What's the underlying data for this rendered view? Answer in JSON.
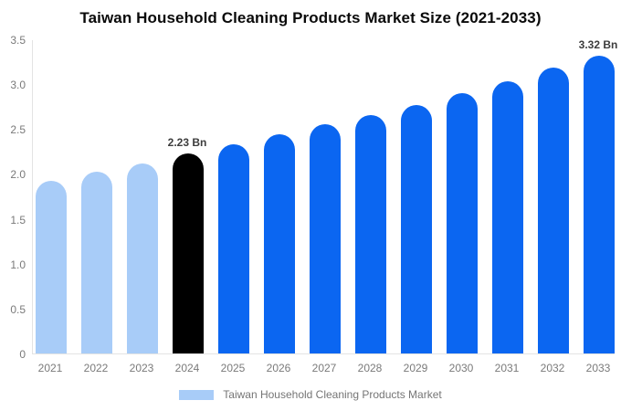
{
  "title": "Taiwan Household Cleaning Products Market Size (2021-2033)",
  "chart_data": {
    "type": "bar",
    "title": "Taiwan Household Cleaning Products Market Size (2021-2033)",
    "categories": [
      "2021",
      "2022",
      "2023",
      "2024",
      "2025",
      "2026",
      "2027",
      "2028",
      "2029",
      "2030",
      "2031",
      "2032",
      "2033"
    ],
    "values": [
      1.92,
      2.02,
      2.12,
      2.23,
      2.33,
      2.44,
      2.55,
      2.66,
      2.77,
      2.9,
      3.03,
      3.18,
      3.32
    ],
    "unit": "Bn",
    "xlabel": "",
    "ylabel": "",
    "ylim": [
      0,
      3.5
    ],
    "yticks": [
      "3.5",
      "3.0",
      "2.5",
      "2.0",
      "1.5",
      "1.0",
      "0.5",
      "0"
    ],
    "grid": false,
    "legend_position": "bottom",
    "bar_roles": [
      "past",
      "past",
      "past",
      "highlight",
      "future",
      "future",
      "future",
      "future",
      "future",
      "future",
      "future",
      "future",
      "future"
    ],
    "colors": {
      "past": "#a8ccf8",
      "highlight": "#000000",
      "future": "#0b66f1"
    },
    "annotations": [
      {
        "index": 3,
        "text": "2.23 Bn"
      },
      {
        "index": 12,
        "text": "3.32 Bn"
      }
    ]
  },
  "legend": {
    "label": "Taiwan Household Cleaning Products Market",
    "swatch_color": "#a8ccf8"
  },
  "style_colors": {
    "axis_line": "#e3e3e3",
    "tick_text": "#7a7a7a",
    "annotation_text": "#3d3d3d",
    "legend_text": "#757575",
    "title_text": "#0a0a0a"
  }
}
